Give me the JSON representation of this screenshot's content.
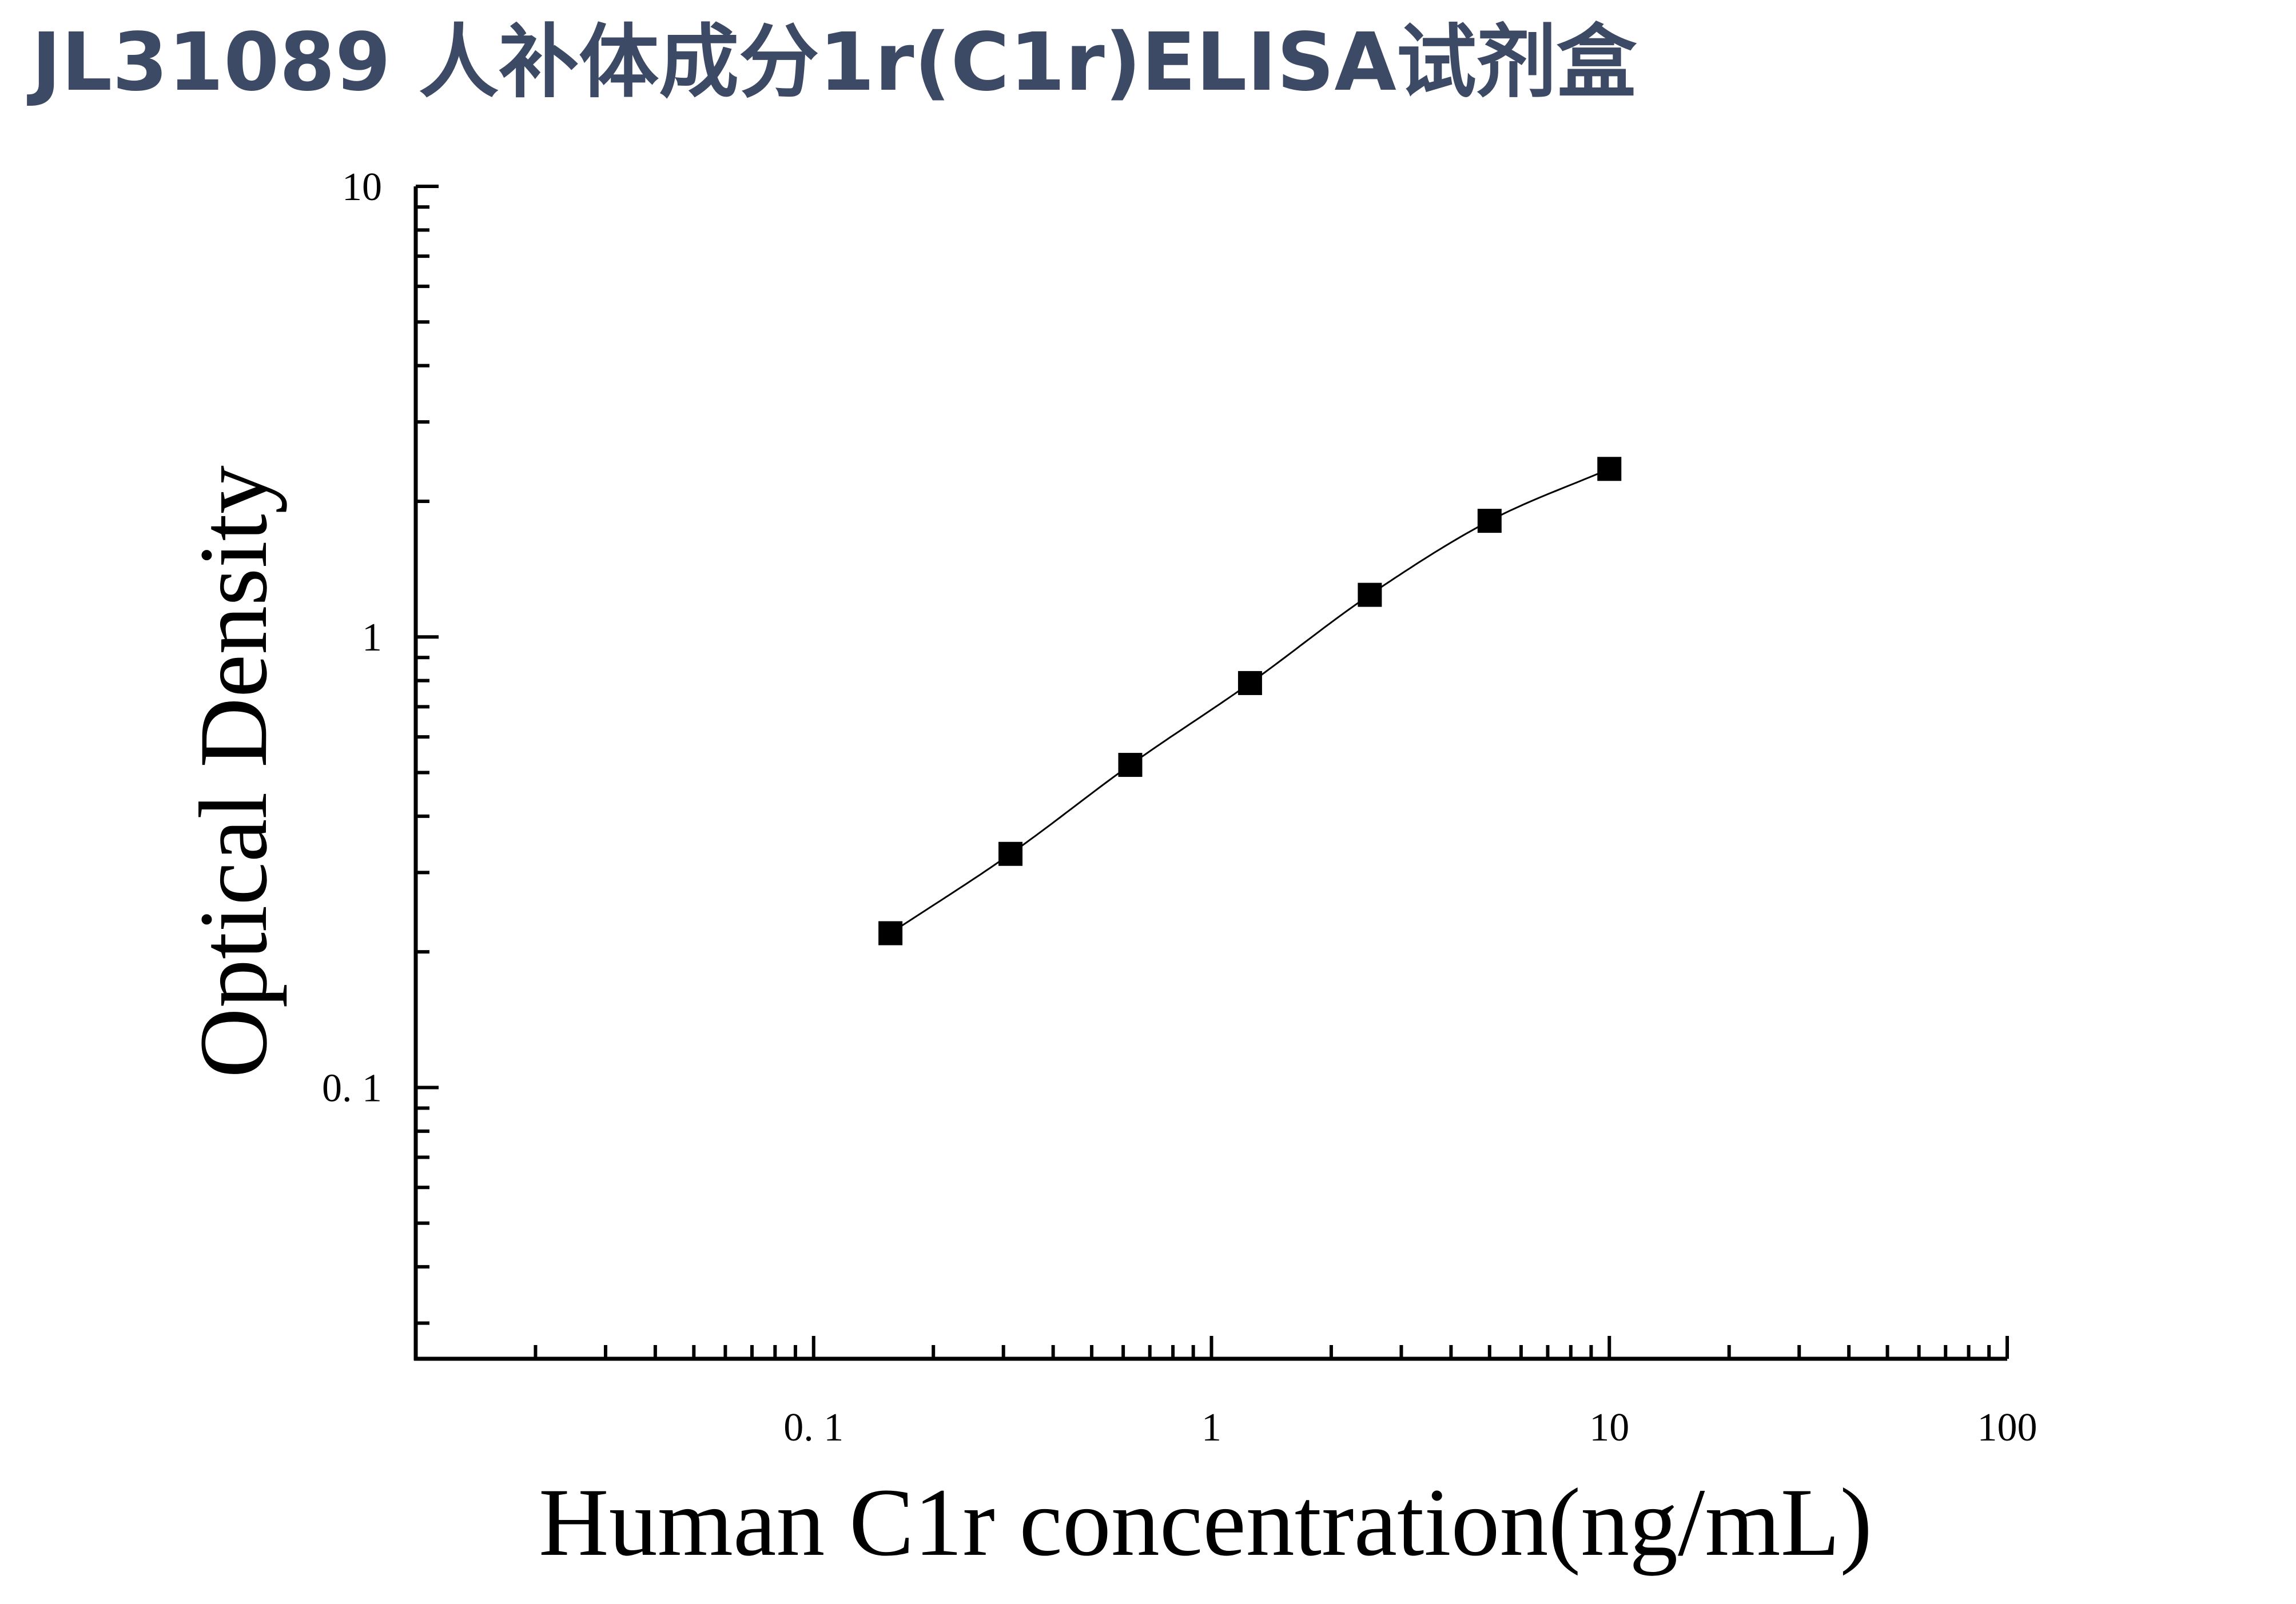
{
  "title": "JL31089 人补体成分1r(C1r)ELISA试剂盒",
  "colors": {
    "title": "#3d4a66",
    "axis": "#000000",
    "marker": "#000000"
  },
  "chart_data": {
    "type": "scatter",
    "title": "JL31089 人补体成分1r(C1r)ELISA试剂盒",
    "xlabel": "Human C1r concentration(ng/mL)",
    "ylabel": "Optical Density",
    "x_scale": "log",
    "y_scale": "log",
    "xlim": [
      0.01,
      100
    ],
    "ylim": [
      0.025,
      10
    ],
    "x_ticks": [
      0.1,
      1,
      10,
      100
    ],
    "x_tick_labels": [
      "0. 1",
      "1",
      "10",
      "100"
    ],
    "y_ticks": [
      0.1,
      1,
      10
    ],
    "y_tick_labels": [
      "0. 1",
      "1",
      "10"
    ],
    "grid": false,
    "legend": "none",
    "series": [
      {
        "marker": "square",
        "fit_line": true,
        "x": [
          0.156,
          0.3125,
          0.625,
          1.25,
          2.5,
          5,
          10
        ],
        "y": [
          0.22,
          0.33,
          0.52,
          0.79,
          1.24,
          1.81,
          2.36
        ]
      }
    ]
  }
}
